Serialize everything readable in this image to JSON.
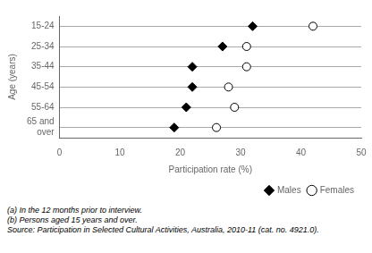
{
  "chart_data": {
    "type": "dot",
    "x_label": "Participation rate (%)",
    "y_label": "Age (years)",
    "categories": [
      "15-24",
      "25-34",
      "35-44",
      "45-54",
      "55-64",
      "65 and\nover"
    ],
    "series": [
      {
        "name": "Males",
        "color": "black",
        "marker": "diamond",
        "values": [
          32,
          27,
          22,
          22,
          21,
          19
        ]
      },
      {
        "name": "Females",
        "color": "white",
        "marker": "circle",
        "values": [
          42,
          31,
          31,
          28,
          29,
          26
        ]
      }
    ],
    "xlim": [
      0,
      50
    ],
    "xticks": [
      0,
      10,
      20,
      30,
      40,
      50
    ],
    "grid": "y",
    "legend": "bottom",
    "annotations": [
      "(a) In the 12 months prior to interview.",
      "(b) Persons aged  15 years and over.",
      "Source: Participation in Selected Cultural Activities, Australia, 2010-11 (cat. no. 4921.0)."
    ]
  }
}
